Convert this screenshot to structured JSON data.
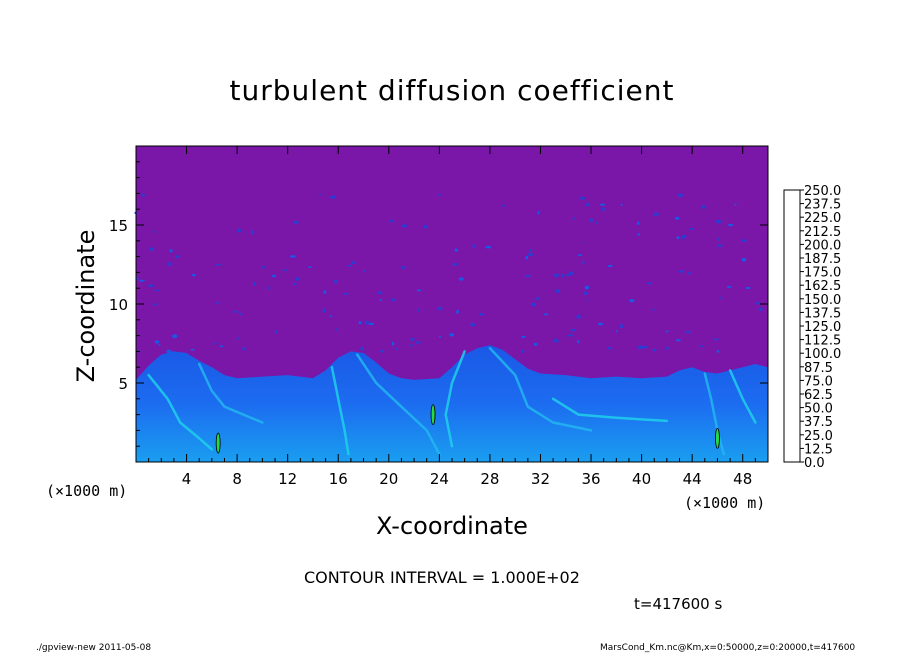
{
  "chart_data": {
    "type": "heatmap",
    "title": "turbulent diffusion coefficient",
    "xlabel": "X-coordinate",
    "ylabel": "Z-coordinate",
    "x_unit": "(×1000 m)",
    "y_unit": "(×1000 m)",
    "xlim": [
      0,
      50
    ],
    "ylim": [
      0,
      20
    ],
    "x_ticks": [
      4,
      8,
      12,
      16,
      20,
      24,
      28,
      32,
      36,
      40,
      44,
      48
    ],
    "y_ticks": [
      5,
      10,
      15
    ],
    "colorbar": {
      "levels": [
        "0.0",
        "12.5",
        "25.0",
        "37.5",
        "50.0",
        "62.5",
        "75.0",
        "87.5",
        "100.0",
        "112.5",
        "125.0",
        "137.5",
        "150.0",
        "162.5",
        "175.0",
        "187.5",
        "200.0",
        "212.5",
        "225.0",
        "237.5",
        "250.0"
      ],
      "colors": [
        "#7a16a8",
        "#3a1aa8",
        "#2230c8",
        "#1848dc",
        "#1a64ee",
        "#1e86f4",
        "#22aef0",
        "#1fd8e6",
        "#18e6b8",
        "#14e088",
        "#18dc50",
        "#3ce030",
        "#72e420",
        "#aee620",
        "#e4e82a",
        "#fcd21a",
        "#fca614",
        "#fc7212",
        "#f8401c",
        "#f21c3a",
        "#f4808a"
      ]
    },
    "mixed_layer_top_km": [
      [
        0,
        5.2
      ],
      [
        1,
        6.1
      ],
      [
        2,
        6.8
      ],
      [
        3,
        7.0
      ],
      [
        4,
        6.9
      ],
      [
        5,
        6.4
      ],
      [
        6,
        6.0
      ],
      [
        7,
        5.5
      ],
      [
        8,
        5.3
      ],
      [
        10,
        5.4
      ],
      [
        12,
        5.5
      ],
      [
        14,
        5.3
      ],
      [
        15,
        5.8
      ],
      [
        16,
        6.6
      ],
      [
        17,
        7.0
      ],
      [
        18,
        6.9
      ],
      [
        19,
        6.3
      ],
      [
        20,
        5.6
      ],
      [
        21,
        5.3
      ],
      [
        22,
        5.2
      ],
      [
        24,
        5.3
      ],
      [
        25,
        6.0
      ],
      [
        26,
        6.8
      ],
      [
        27,
        7.2
      ],
      [
        28,
        7.4
      ],
      [
        29,
        7.1
      ],
      [
        30,
        6.5
      ],
      [
        31,
        5.9
      ],
      [
        32,
        5.6
      ],
      [
        34,
        5.5
      ],
      [
        36,
        5.3
      ],
      [
        38,
        5.4
      ],
      [
        40,
        5.3
      ],
      [
        42,
        5.4
      ],
      [
        43,
        5.8
      ],
      [
        44,
        6.0
      ],
      [
        45,
        5.7
      ],
      [
        46,
        5.6
      ],
      [
        47,
        5.8
      ],
      [
        48,
        6.0
      ],
      [
        49,
        6.2
      ],
      [
        50,
        6.0
      ]
    ],
    "contour_interval": "CONTOUR INTERVAL = 1.000E+02",
    "time": "t=417600 s"
  },
  "footer": {
    "left": "./gpview-new   2011-05-08",
    "right": "MarsCond_Km.nc@Km,x=0:50000,z=0:20000,t=417600"
  }
}
